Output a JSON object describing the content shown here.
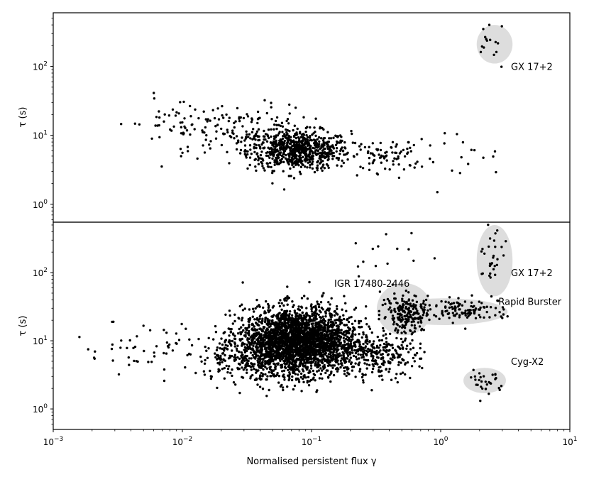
{
  "chart_data": {
    "type": "scatter",
    "xlabel": "Normalised persistent flux γ",
    "xscale": "log",
    "xlim": [
      0.001,
      10
    ],
    "x_ticks": [
      {
        "value": 0.001,
        "base": "10",
        "exp": "−3"
      },
      {
        "value": 0.01,
        "base": "10",
        "exp": "−2"
      },
      {
        "value": 0.1,
        "base": "10",
        "exp": "−1"
      },
      {
        "value": 1,
        "base": "10",
        "exp": "0"
      },
      {
        "value": 10,
        "base": "10",
        "exp": "1"
      }
    ],
    "panels": [
      {
        "name": "top",
        "ylabel": "τ (s)",
        "yscale": "log",
        "ylim": [
          0.55,
          600
        ],
        "y_ticks": [
          {
            "value": 1,
            "base": "10",
            "exp": "0"
          },
          {
            "value": 10,
            "base": "10",
            "exp": "1"
          },
          {
            "value": 100,
            "base": "10",
            "exp": "2"
          }
        ],
        "regions": [
          {
            "label": "GX 17+2",
            "label_at": [
              3.5,
              100
            ],
            "x": [
              1.9,
              3.6
            ],
            "y": [
              110,
              400
            ]
          }
        ],
        "clusters": [
          {
            "center": [
              0.08,
              6
            ],
            "n": 700,
            "sx": 0.2,
            "sy": 0.14,
            "xmin": 0.03,
            "xmax": 0.35
          },
          {
            "center": [
              0.03,
              11
            ],
            "n": 170,
            "sx": 0.25,
            "sy": 0.2,
            "xmin": 0.004,
            "xmax": 0.2
          },
          {
            "center": [
              0.4,
              5
            ],
            "n": 70,
            "sx": 0.15,
            "sy": 0.12,
            "xmin": 0.25,
            "xmax": 0.8
          },
          {
            "center": [
              0.009,
              15
            ],
            "n": 40,
            "sx": 0.25,
            "sy": 0.2,
            "xmin": 0.003,
            "xmax": 0.02
          },
          {
            "center": [
              1.2,
              5
            ],
            "n": 18,
            "sx": 0.2,
            "sy": 0.2,
            "xmin": 0.8,
            "xmax": 3
          },
          {
            "center": [
              2.4,
              200
            ],
            "n": 15,
            "sx": 0.08,
            "sy": 0.2,
            "xmin": 1.9,
            "xmax": 3
          }
        ]
      },
      {
        "name": "bottom",
        "ylabel": "τ (s)",
        "yscale": "log",
        "ylim": [
          0.5,
          550
        ],
        "y_ticks": [
          {
            "value": 1,
            "base": "10",
            "exp": "0"
          },
          {
            "value": 10,
            "base": "10",
            "exp": "1"
          },
          {
            "value": 100,
            "base": "10",
            "exp": "2"
          }
        ],
        "regions": [
          {
            "label": "GX 17+2",
            "label_at": [
              3.5,
              100
            ],
            "x": [
              1.9,
              3.6
            ],
            "y": [
              45,
              500
            ]
          },
          {
            "label": "IGR 17480-2446",
            "label_at": [
              0.15,
              70
            ],
            "x": [
              0.32,
              0.85
            ],
            "y": [
              12,
              70
            ]
          },
          {
            "label": "Rapid Burster",
            "label_at": [
              2.8,
              38
            ],
            "x": [
              0.35,
              3.3
            ],
            "y": [
              17,
              42
            ]
          },
          {
            "label": "Cyg-X2",
            "label_at": [
              3.5,
              5
            ],
            "x": [
              1.5,
              3.2
            ],
            "y": [
              1.7,
              4
            ]
          }
        ],
        "clusters": [
          {
            "center": [
              0.08,
              10
            ],
            "n": 2600,
            "sx": 0.22,
            "sy": 0.24,
            "xmin": 0.018,
            "xmax": 0.5
          },
          {
            "center": [
              0.04,
              6
            ],
            "n": 300,
            "sx": 0.25,
            "sy": 0.2,
            "xmin": 0.01,
            "xmax": 0.2
          },
          {
            "center": [
              0.3,
              6
            ],
            "n": 250,
            "sx": 0.18,
            "sy": 0.15,
            "xmin": 0.1,
            "xmax": 0.8
          },
          {
            "center": [
              0.55,
              25
            ],
            "n": 200,
            "sx": 0.1,
            "sy": 0.15,
            "xmin": 0.33,
            "xmax": 0.8
          },
          {
            "center": [
              1.5,
              28
            ],
            "n": 120,
            "sx": 0.2,
            "sy": 0.08,
            "xmin": 0.7,
            "xmax": 3.3
          },
          {
            "center": [
              2.4,
              150
            ],
            "n": 30,
            "sx": 0.08,
            "sy": 0.25,
            "xmin": 2,
            "xmax": 3.2
          },
          {
            "center": [
              2.3,
              2.5
            ],
            "n": 30,
            "sx": 0.07,
            "sy": 0.1,
            "xmin": 1.7,
            "xmax": 3
          },
          {
            "center": [
              0.007,
              8
            ],
            "n": 55,
            "sx": 0.35,
            "sy": 0.2,
            "xmin": 0.001,
            "xmax": 0.015
          },
          {
            "center": [
              0.5,
              200
            ],
            "n": 14,
            "sx": 0.3,
            "sy": 0.2,
            "xmin": 0.2,
            "xmax": 1
          }
        ]
      }
    ]
  }
}
